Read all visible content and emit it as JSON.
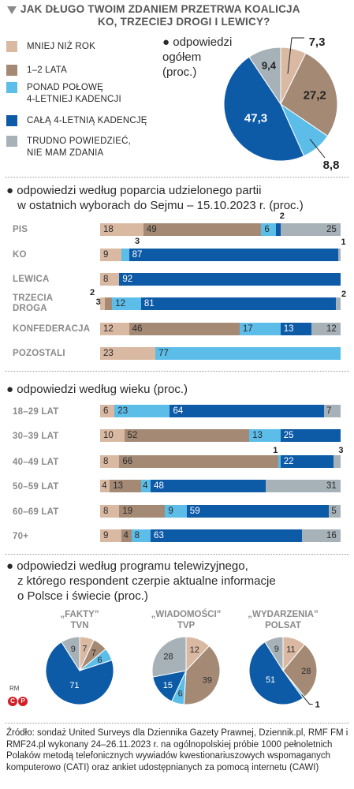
{
  "header": {
    "title_line1": "JAK DŁUGO TWOIM ZDANIEM PRZETRWA KOALICJA",
    "title_line2": "KO, TRZECIEJ DROGI I LEWICY?"
  },
  "legend": [
    {
      "label": "MNIEJ NIŻ ROK",
      "color": "#d9b9a2"
    },
    {
      "label": "1–2 LATA",
      "color": "#a48a75"
    },
    {
      "label": "PONAD POŁOWĘ\n4-LETNIEJ KADENCJI",
      "color": "#5cbde9"
    },
    {
      "label": "CAŁĄ 4-LETNIĄ KADENCJĘ",
      "color": "#0d5aa7"
    },
    {
      "label": "TRUDNO POWIEDZIEĆ,\nNIE MAM ZDANIA",
      "color": "#a6b1b8"
    }
  ],
  "overall": {
    "heading_line1": "odpowiedzi",
    "heading_line2": "ogółem",
    "heading_line3": "(proc.)",
    "bullet": "●"
  },
  "sections": {
    "party": {
      "line1": "odpowiedzi według poparcia udzielonego partii",
      "line2": "w ostatnich wyborach do Sejmu – 15.10.2023 r. (proc.)"
    },
    "age": {
      "line1": "odpowiedzi według wieku (proc.)"
    },
    "tv": {
      "line1": "odpowiedzi według programu telewizyjnego,",
      "line2": "z którego respondent czerpie aktualne informacje",
      "line3": "o Polsce i świecie (proc.)"
    }
  },
  "chart_data": [
    {
      "type": "pie",
      "id": "overall",
      "categories": [
        "MNIEJ NIŻ ROK",
        "1–2 LATA",
        "PONAD POŁOWĘ 4-LETNIEJ KADENCJI",
        "CAŁĄ 4-LETNIĄ KADENCJĘ",
        "TRUDNO POWIEDZIEĆ, NIE MAM ZDANIA"
      ],
      "values": [
        7.3,
        27.2,
        8.8,
        47.3,
        9.4
      ],
      "labels": [
        "7,3",
        "27,2",
        "8,8",
        "47,3",
        "9,4"
      ]
    },
    {
      "type": "bar",
      "stacked": true,
      "id": "party",
      "categories": [
        "PIS",
        "KO",
        "LEWICA",
        "TRZECIA\nDROGA",
        "KONFEDERACJA",
        "POZOSTALI"
      ],
      "series": [
        {
          "name": "MNIEJ NIŻ ROK",
          "values": [
            18,
            9,
            8,
            2,
            12,
            23
          ]
        },
        {
          "name": "1–2 LATA",
          "values": [
            49,
            0,
            0,
            3,
            46,
            0
          ]
        },
        {
          "name": "PONAD POŁOWĘ 4-LETNIEJ KADENCJI",
          "values": [
            6,
            3,
            0,
            12,
            17,
            77
          ]
        },
        {
          "name": "CAŁĄ 4-LETNIĄ KADENCJĘ",
          "values": [
            2,
            87,
            92,
            81,
            13,
            0
          ]
        },
        {
          "name": "TRUDNO POWIEDZIEĆ, NIE MAM ZDANIA",
          "values": [
            25,
            1,
            0,
            2,
            12,
            0
          ]
        }
      ]
    },
    {
      "type": "bar",
      "stacked": true,
      "id": "age",
      "categories": [
        "18–29 LAT",
        "30–39 LAT",
        "40–49 LAT",
        "50–59 LAT",
        "60–69 LAT",
        "70+"
      ],
      "series": [
        {
          "name": "MNIEJ NIŻ ROK",
          "values": [
            6,
            10,
            8,
            4,
            8,
            9
          ]
        },
        {
          "name": "1–2 LATA",
          "values": [
            0,
            52,
            66,
            13,
            19,
            4
          ]
        },
        {
          "name": "PONAD POŁOWĘ 4-LETNIEJ KADENCJI",
          "values": [
            23,
            13,
            1,
            4,
            9,
            8
          ]
        },
        {
          "name": "CAŁĄ 4-LETNIĄ KADENCJĘ",
          "values": [
            64,
            25,
            22,
            48,
            59,
            63
          ]
        },
        {
          "name": "TRUDNO POWIEDZIEĆ, NIE MAM ZDANIA",
          "values": [
            7,
            0,
            3,
            31,
            5,
            16
          ]
        }
      ]
    },
    {
      "type": "pie",
      "id": "tv",
      "charts": [
        {
          "title_line1": "„FAKTY”",
          "title_line2": "TVN",
          "values": [
            7,
            7,
            6,
            71,
            9
          ]
        },
        {
          "title_line1": "„WIADOMOŚCI”",
          "title_line2": "TVP",
          "values": [
            12,
            39,
            6,
            15,
            28
          ]
        },
        {
          "title_line1": "„WYDARZENIA”",
          "title_line2": "POLSAT",
          "values": [
            11,
            28,
            1,
            51,
            9
          ]
        }
      ]
    }
  ],
  "footer": {
    "source": "Źródło: sondaż United Surveys dla Dziennika Gazety Prawnej, Dziennik.pl, RMF FM i RMF24.pl wykonany 24–26.11.2023 r. na ogólnopolskiej próbie 1000 pełnoletnich Polaków metodą telefonicznych wywiadów kwestionariuszowych wspomaganych komputerowo (CATI) oraz ankiet udostępnianych za pomocą internetu (CAWI)",
    "author": "RM",
    "logo_c": "C",
    "logo_p": "P"
  }
}
